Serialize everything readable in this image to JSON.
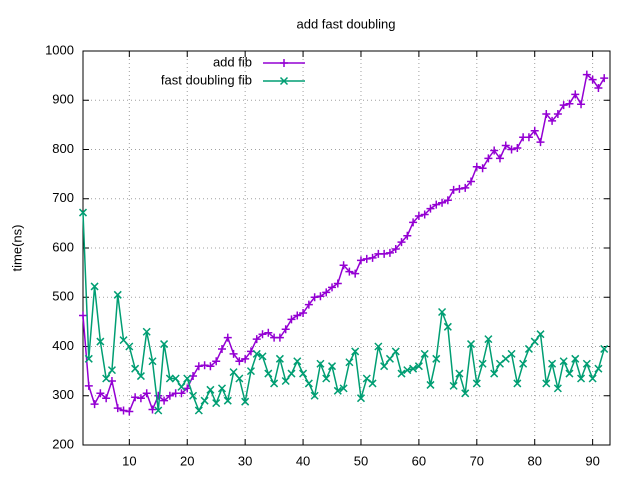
{
  "chart_data": {
    "type": "line",
    "title": "add fast doubling",
    "ylabel": "time(ns)",
    "x": [
      2,
      3,
      4,
      5,
      6,
      7,
      8,
      9,
      10,
      11,
      12,
      13,
      14,
      15,
      16,
      17,
      18,
      19,
      20,
      21,
      22,
      23,
      24,
      25,
      26,
      27,
      28,
      29,
      30,
      31,
      32,
      33,
      34,
      35,
      36,
      37,
      38,
      39,
      40,
      41,
      42,
      43,
      44,
      45,
      46,
      47,
      48,
      49,
      50,
      51,
      52,
      53,
      54,
      55,
      56,
      57,
      58,
      59,
      60,
      61,
      62,
      63,
      64,
      65,
      66,
      67,
      68,
      69,
      70,
      71,
      72,
      73,
      74,
      75,
      76,
      77,
      78,
      79,
      80,
      81,
      82,
      83,
      84,
      85,
      86,
      87,
      88,
      89,
      90,
      91,
      92
    ],
    "series": [
      {
        "name": "add fib",
        "color": "#9400d3",
        "marker": "plus",
        "values": [
          463,
          320,
          283,
          305,
          295,
          330,
          275,
          270,
          268,
          297,
          295,
          305,
          272,
          300,
          290,
          300,
          305,
          305,
          315,
          340,
          360,
          362,
          360,
          370,
          395,
          418,
          385,
          370,
          375,
          390,
          415,
          425,
          428,
          418,
          418,
          435,
          455,
          463,
          468,
          485,
          500,
          502,
          510,
          520,
          528,
          565,
          552,
          548,
          575,
          578,
          580,
          588,
          588,
          590,
          598,
          612,
          625,
          652,
          665,
          668,
          680,
          688,
          692,
          697,
          718,
          720,
          722,
          735,
          765,
          762,
          782,
          798,
          782,
          808,
          800,
          803,
          825,
          825,
          838,
          815,
          872,
          858,
          872,
          890,
          893,
          912,
          892,
          952,
          942,
          925,
          945
        ]
      },
      {
        "name": "fast doubling fib",
        "color": "#009e73",
        "marker": "cross",
        "values": [
          672,
          375,
          522,
          410,
          335,
          352,
          505,
          413,
          400,
          355,
          340,
          430,
          370,
          270,
          405,
          335,
          335,
          318,
          335,
          300,
          270,
          290,
          312,
          285,
          315,
          290,
          348,
          335,
          288,
          350,
          385,
          380,
          345,
          325,
          375,
          330,
          345,
          370,
          345,
          325,
          300,
          365,
          335,
          360,
          310,
          315,
          368,
          390,
          295,
          335,
          325,
          400,
          360,
          375,
          390,
          345,
          352,
          355,
          360,
          385,
          322,
          375,
          470,
          440,
          320,
          345,
          305,
          405,
          325,
          365,
          415,
          345,
          365,
          375,
          385,
          325,
          365,
          395,
          410,
          425,
          325,
          365,
          315,
          370,
          345,
          375,
          335,
          365,
          335,
          355,
          395
        ]
      }
    ],
    "xlim": [
      2,
      93
    ],
    "xticks": [
      10,
      20,
      30,
      40,
      50,
      60,
      70,
      80,
      90
    ],
    "ylim": [
      200,
      1000
    ],
    "yticks": [
      200,
      300,
      400,
      500,
      600,
      700,
      800,
      900,
      1000
    ],
    "grid": true,
    "legend": "top-left"
  }
}
